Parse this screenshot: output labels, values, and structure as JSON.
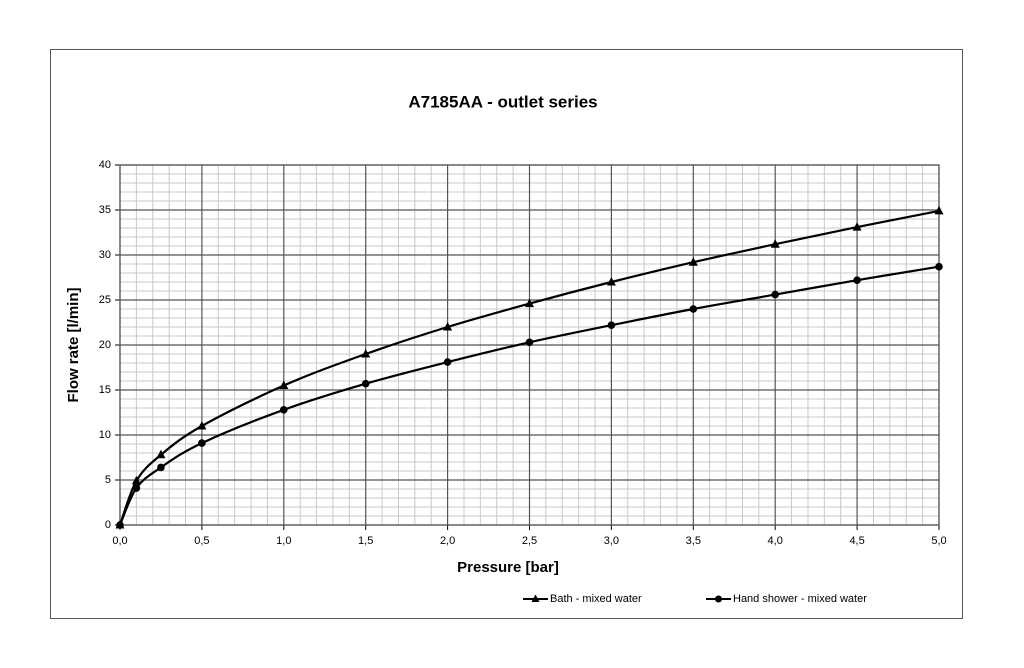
{
  "chart_data": {
    "type": "line",
    "title": "A7185AA - outlet series",
    "x_label": "Pressure [bar]",
    "y_label": "Flow rate [l/min]",
    "x": [
      0,
      0.1,
      0.25,
      0.5,
      1.0,
      1.5,
      2.0,
      2.5,
      3.0,
      3.5,
      4.0,
      4.5,
      5.0
    ],
    "series": [
      {
        "name": "Bath - mixed water",
        "color": "#000000",
        "marker": "triangle",
        "values": [
          0,
          4.9,
          7.8,
          11.0,
          15.5,
          19.0,
          22.0,
          24.6,
          27.0,
          29.2,
          31.2,
          33.1,
          34.9
        ]
      },
      {
        "name": "Hand shower - mixed water",
        "color": "#000000",
        "marker": "circle",
        "values": [
          0,
          4.1,
          6.4,
          9.1,
          12.8,
          15.7,
          18.1,
          20.3,
          22.2,
          24.0,
          25.6,
          27.2,
          28.7
        ]
      }
    ],
    "xlim": [
      0,
      5
    ],
    "xticks": [
      {
        "value": 0,
        "label": "0,0"
      },
      {
        "value": 0.5,
        "label": "0,5"
      },
      {
        "value": 1,
        "label": "1,0"
      },
      {
        "value": 1.5,
        "label": "1,5"
      },
      {
        "value": 2,
        "label": "2,0"
      },
      {
        "value": 2.5,
        "label": "2,5"
      },
      {
        "value": 3,
        "label": "3,0"
      },
      {
        "value": 3.5,
        "label": "3,5"
      },
      {
        "value": 4,
        "label": "4,0"
      },
      {
        "value": 4.5,
        "label": "4,5"
      },
      {
        "value": 5,
        "label": "5,0"
      }
    ],
    "ylim": [
      0,
      40
    ],
    "yticks": [
      0,
      5,
      10,
      15,
      20,
      25,
      30,
      35,
      40
    ],
    "grid": true,
    "minor_grid": {
      "x": 5,
      "y": 5
    },
    "legend": "bottom"
  }
}
